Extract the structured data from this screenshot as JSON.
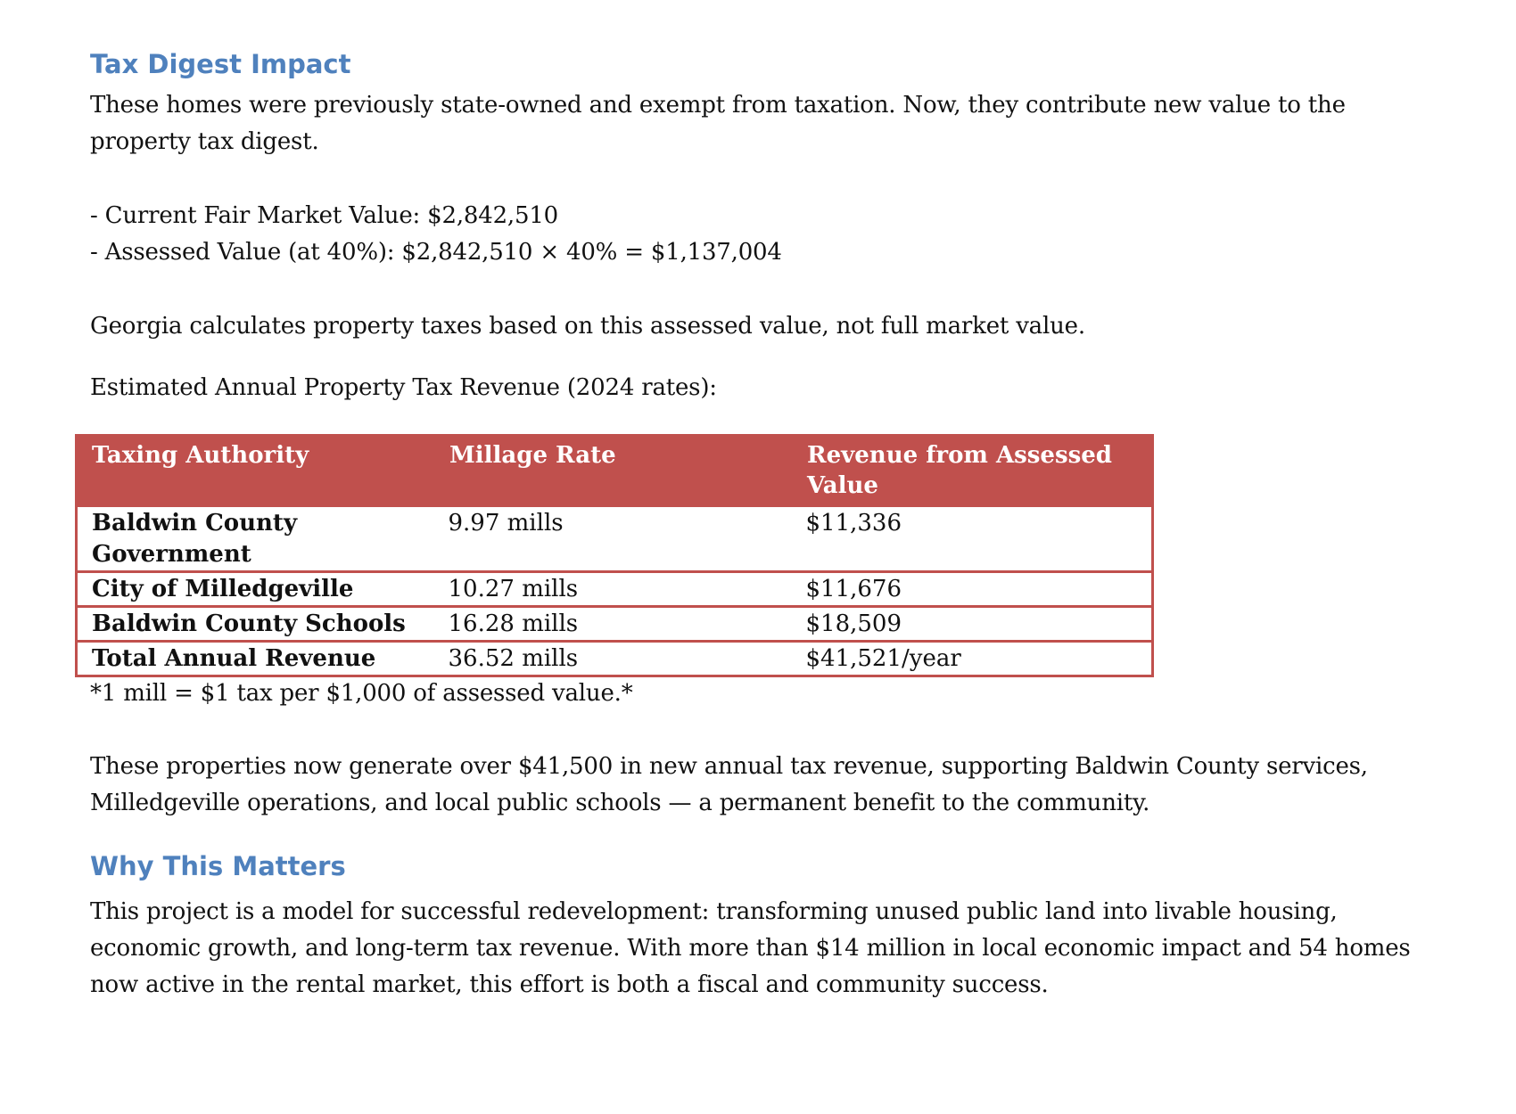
{
  "section1": {
    "heading": "Tax Digest Impact",
    "intro_line1": "These homes were previously state-owned and exempt from taxation. Now, they contribute new value to the",
    "intro_line2": "property tax digest.",
    "bullet1": "- Current Fair Market Value: $2,842,510",
    "bullet2": "- Assessed Value (at 40%): $2,842,510 × 40% = $1,137,004",
    "georgia_note": "Georgia calculates property taxes based on this assessed value, not full market value.",
    "estimate_label": "Estimated Annual Property Tax Revenue (2024 rates):"
  },
  "table": {
    "headers": [
      "Taxing Authority",
      "Millage Rate",
      "Revenue from Assessed Value"
    ],
    "rows": [
      [
        "Baldwin County Government",
        "9.97 mills",
        "$11,336"
      ],
      [
        "City of Milledgeville",
        "10.27 mills",
        "$11,676"
      ],
      [
        "Baldwin County Schools",
        "16.28 mills",
        "$18,509"
      ],
      [
        "Total Annual Revenue",
        "36.52 mills",
        "$41,521/year"
      ]
    ],
    "footnote": "*1 mill = $1 tax per $1,000 of assessed value.*"
  },
  "summary": {
    "line1": "These properties now generate over $41,500 in new annual tax revenue, supporting Baldwin County services,",
    "line2": "Milledgeville operations, and local public schools — a permanent benefit to the community."
  },
  "section2": {
    "heading": "Why This Matters",
    "line1": "This project is a model for successful redevelopment: transforming unused public land into livable housing,",
    "line2": "economic growth, and long-term tax revenue. With more than $14 million in local economic impact and 54 homes",
    "line3": "now active in the rental market, this effort is both a fiscal and community success."
  },
  "colors": {
    "heading": "#4f81bd",
    "table_header": "#c0504d",
    "table_border": "#c0504d"
  }
}
